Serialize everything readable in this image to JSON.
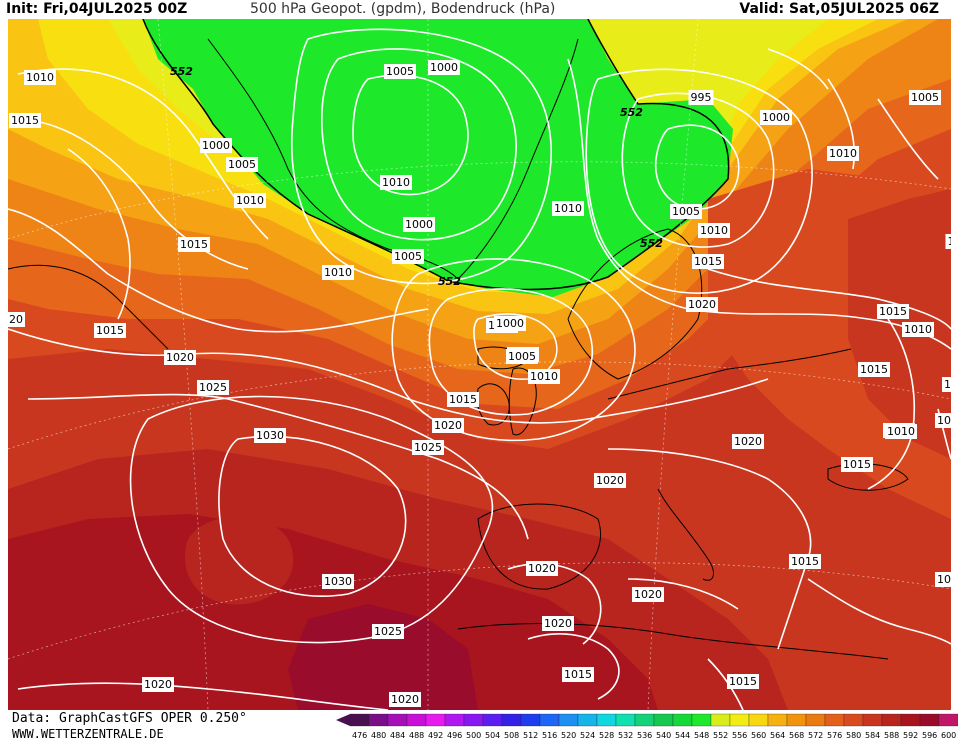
{
  "header": {
    "init": "Init: Fri,04JUL2025 00Z",
    "title": "500 hPa Geopot. (gpdm), Bodendruck (hPa)",
    "valid": "Valid: Sat,05JUL2025 06Z"
  },
  "footer": {
    "data_source": "Data: GraphCastGFS OPER 0.250°",
    "website": "WWW.WETTERZENTRALE.DE"
  },
  "legend": {
    "levels": [
      "476",
      "480",
      "484",
      "488",
      "492",
      "496",
      "500",
      "504",
      "508",
      "512",
      "516",
      "520",
      "524",
      "528",
      "532",
      "536",
      "540",
      "544",
      "548",
      "552",
      "556",
      "560",
      "564",
      "568",
      "572",
      "576",
      "580",
      "584",
      "588",
      "592",
      "596",
      "600"
    ],
    "colors": [
      "#4a0f4f",
      "#7a0d88",
      "#a40fb8",
      "#c810d6",
      "#e81aef",
      "#b019f0",
      "#8a18f2",
      "#5e1df0",
      "#3520e8",
      "#1c3cf0",
      "#1e66f5",
      "#1c8ff0",
      "#15b5ea",
      "#10d6df",
      "#10e0b0",
      "#12d27a",
      "#14c850",
      "#16d83a",
      "#1ee82a",
      "#d8ec1a",
      "#f2ec14",
      "#f8d612",
      "#f7b10f",
      "#f2930e",
      "#ec7a12",
      "#e4601a",
      "#d94a1f",
      "#c9361f",
      "#b82520",
      "#a8141e",
      "#9a0b2a",
      "#c0166a"
    ]
  },
  "map": {
    "colors": {
      "z548": "#1ee82a",
      "z552": "#e8ec18",
      "z556": "#f8e010",
      "z560": "#f9c512",
      "z564": "#f5a214",
      "z568": "#ee8416",
      "z572": "#e6661c",
      "z576": "#d9491f",
      "z580": "#c93620",
      "z584": "#b8251f",
      "z588": "#a8151e",
      "z592": "#9a0c2c",
      "isobar": "#ffffff",
      "coast": "#000000"
    },
    "contour_552_label": "552",
    "isobar_labels": [
      {
        "text": "1010"
      },
      {
        "text": "1015"
      },
      {
        "text": "1000"
      },
      {
        "text": "1005"
      },
      {
        "text": "1010"
      },
      {
        "text": "1015"
      },
      {
        "text": "1010"
      },
      {
        "text": "1015"
      },
      {
        "text": "1020"
      },
      {
        "text": "1025"
      },
      {
        "text": "1030"
      },
      {
        "text": "1025"
      },
      {
        "text": "1030"
      },
      {
        "text": "1025"
      },
      {
        "text": "1020"
      },
      {
        "text": "1005"
      },
      {
        "text": "1000"
      },
      {
        "text": "1010"
      },
      {
        "text": "1000"
      },
      {
        "text": "1005"
      },
      {
        "text": "1005"
      },
      {
        "text": "1010"
      },
      {
        "text": "1000"
      },
      {
        "text": "1005"
      },
      {
        "text": "1010"
      },
      {
        "text": "1015"
      },
      {
        "text": "1020"
      },
      {
        "text": "1000"
      },
      {
        "text": "995"
      },
      {
        "text": "1000"
      },
      {
        "text": "1005"
      },
      {
        "text": "1010"
      },
      {
        "text": "1010"
      },
      {
        "text": "1015"
      },
      {
        "text": "1020"
      },
      {
        "text": "1015"
      },
      {
        "text": "1010"
      },
      {
        "text": "1015"
      },
      {
        "text": "1010"
      },
      {
        "text": "1020"
      },
      {
        "text": "1015"
      },
      {
        "text": "1020"
      },
      {
        "text": "1020"
      },
      {
        "text": "1020"
      },
      {
        "text": "1020"
      },
      {
        "text": "1015"
      },
      {
        "text": "1015"
      },
      {
        "text": "1015"
      },
      {
        "text": "1020"
      },
      {
        "text": "1010"
      },
      {
        "text": "1005"
      },
      {
        "text": "1010"
      },
      {
        "text": "1020"
      },
      {
        "text": "20"
      },
      {
        "text": "1"
      },
      {
        "text": "10"
      }
    ]
  }
}
